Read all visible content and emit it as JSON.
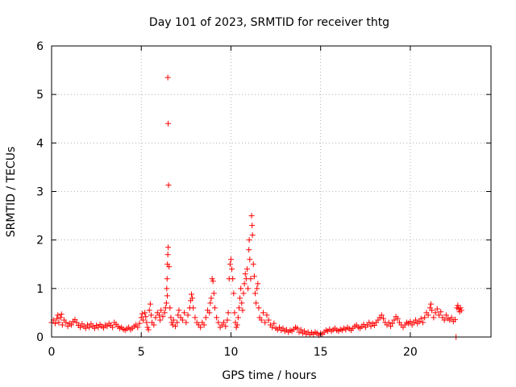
{
  "chart_data": {
    "type": "scatter",
    "title": "Day 101 of 2023, SRMTID for receiver thtg",
    "xlabel": "GPS time / hours",
    "ylabel": "SRMTID / TECUs",
    "xlim": [
      0,
      24.5
    ],
    "ylim": [
      0,
      6
    ],
    "xticks": [
      0,
      5,
      10,
      15,
      20
    ],
    "yticks": [
      0,
      1,
      2,
      3,
      4,
      5,
      6
    ],
    "grid": true,
    "marker": "plus",
    "color": "#ff0000",
    "series": [
      {
        "name": "SRMTID",
        "points": [
          [
            0.0,
            0.3
          ],
          [
            0.1,
            0.35
          ],
          [
            0.2,
            0.28
          ],
          [
            0.3,
            0.38
          ],
          [
            0.35,
            0.45
          ],
          [
            0.4,
            0.3
          ],
          [
            0.5,
            0.4
          ],
          [
            0.55,
            0.47
          ],
          [
            0.6,
            0.25
          ],
          [
            0.7,
            0.35
          ],
          [
            0.8,
            0.3
          ],
          [
            0.9,
            0.22
          ],
          [
            1.0,
            0.28
          ],
          [
            1.1,
            0.25
          ],
          [
            1.2,
            0.32
          ],
          [
            1.3,
            0.36
          ],
          [
            1.4,
            0.3
          ],
          [
            1.5,
            0.24
          ],
          [
            1.6,
            0.2
          ],
          [
            1.7,
            0.27
          ],
          [
            1.8,
            0.22
          ],
          [
            1.9,
            0.18
          ],
          [
            2.0,
            0.25
          ],
          [
            2.1,
            0.2
          ],
          [
            2.2,
            0.27
          ],
          [
            2.3,
            0.22
          ],
          [
            2.4,
            0.18
          ],
          [
            2.5,
            0.24
          ],
          [
            2.6,
            0.2
          ],
          [
            2.7,
            0.26
          ],
          [
            2.8,
            0.22
          ],
          [
            2.9,
            0.19
          ],
          [
            3.0,
            0.25
          ],
          [
            3.1,
            0.22
          ],
          [
            3.2,
            0.28
          ],
          [
            3.3,
            0.24
          ],
          [
            3.4,
            0.2
          ],
          [
            3.5,
            0.3
          ],
          [
            3.6,
            0.26
          ],
          [
            3.7,
            0.22
          ],
          [
            3.8,
            0.18
          ],
          [
            3.9,
            0.2
          ],
          [
            4.0,
            0.16
          ],
          [
            4.1,
            0.14
          ],
          [
            4.2,
            0.17
          ],
          [
            4.3,
            0.2
          ],
          [
            4.4,
            0.15
          ],
          [
            4.5,
            0.18
          ],
          [
            4.6,
            0.22
          ],
          [
            4.7,
            0.25
          ],
          [
            4.8,
            0.2
          ],
          [
            4.9,
            0.28
          ],
          [
            5.0,
            0.4
          ],
          [
            5.05,
            0.48
          ],
          [
            5.1,
            0.35
          ],
          [
            5.2,
            0.5
          ],
          [
            5.25,
            0.42
          ],
          [
            5.3,
            0.3
          ],
          [
            5.35,
            0.2
          ],
          [
            5.4,
            0.15
          ],
          [
            5.45,
            0.55
          ],
          [
            5.5,
            0.68
          ],
          [
            5.55,
            0.45
          ],
          [
            5.6,
            0.3
          ],
          [
            5.7,
            0.25
          ],
          [
            5.8,
            0.4
          ],
          [
            5.9,
            0.5
          ],
          [
            6.0,
            0.45
          ],
          [
            6.05,
            0.35
          ],
          [
            6.1,
            0.55
          ],
          [
            6.2,
            0.42
          ],
          [
            6.3,
            0.5
          ],
          [
            6.35,
            0.6
          ],
          [
            6.4,
            0.7
          ],
          [
            6.45,
            0.85
          ],
          [
            6.42,
            1.0
          ],
          [
            6.44,
            1.2
          ],
          [
            6.46,
            1.5
          ],
          [
            6.48,
            1.7
          ],
          [
            6.5,
            1.85
          ],
          [
            6.52,
            3.13
          ],
          [
            6.5,
            4.4
          ],
          [
            6.48,
            5.35
          ],
          [
            6.55,
            1.45
          ],
          [
            6.6,
            0.6
          ],
          [
            6.65,
            0.4
          ],
          [
            6.7,
            0.3
          ],
          [
            6.75,
            0.25
          ],
          [
            6.8,
            0.35
          ],
          [
            6.9,
            0.22
          ],
          [
            7.0,
            0.3
          ],
          [
            7.05,
            0.45
          ],
          [
            7.1,
            0.55
          ],
          [
            7.2,
            0.4
          ],
          [
            7.3,
            0.35
          ],
          [
            7.4,
            0.5
          ],
          [
            7.5,
            0.3
          ],
          [
            7.6,
            0.45
          ],
          [
            7.7,
            0.6
          ],
          [
            7.75,
            0.75
          ],
          [
            7.8,
            0.88
          ],
          [
            7.85,
            0.8
          ],
          [
            7.9,
            0.6
          ],
          [
            8.0,
            0.4
          ],
          [
            8.1,
            0.3
          ],
          [
            8.2,
            0.25
          ],
          [
            8.3,
            0.2
          ],
          [
            8.4,
            0.3
          ],
          [
            8.5,
            0.25
          ],
          [
            8.6,
            0.4
          ],
          [
            8.7,
            0.55
          ],
          [
            8.8,
            0.5
          ],
          [
            8.85,
            0.7
          ],
          [
            8.9,
            0.8
          ],
          [
            8.95,
            1.2
          ],
          [
            9.0,
            1.15
          ],
          [
            9.05,
            0.9
          ],
          [
            9.1,
            0.6
          ],
          [
            9.2,
            0.4
          ],
          [
            9.3,
            0.3
          ],
          [
            9.4,
            0.2
          ],
          [
            9.5,
            0.25
          ],
          [
            9.6,
            0.3
          ],
          [
            9.7,
            0.22
          ],
          [
            9.8,
            0.35
          ],
          [
            9.85,
            0.5
          ],
          [
            9.9,
            1.2
          ],
          [
            9.95,
            1.5
          ],
          [
            10.0,
            1.6
          ],
          [
            10.05,
            1.4
          ],
          [
            10.1,
            1.2
          ],
          [
            10.15,
            0.9
          ],
          [
            10.2,
            0.5
          ],
          [
            10.25,
            0.3
          ],
          [
            10.3,
            0.2
          ],
          [
            10.35,
            0.25
          ],
          [
            10.4,
            0.4
          ],
          [
            10.45,
            0.6
          ],
          [
            10.5,
            0.8
          ],
          [
            10.55,
            1.0
          ],
          [
            10.6,
            0.7
          ],
          [
            10.65,
            0.55
          ],
          [
            10.7,
            0.9
          ],
          [
            10.75,
            1.1
          ],
          [
            10.8,
            1.3
          ],
          [
            10.85,
            1.2
          ],
          [
            10.9,
            1.4
          ],
          [
            10.95,
            1.0
          ],
          [
            11.0,
            1.8
          ],
          [
            11.02,
            2.0
          ],
          [
            11.05,
            1.6
          ],
          [
            11.1,
            1.2
          ],
          [
            11.15,
            2.5
          ],
          [
            11.18,
            2.3
          ],
          [
            11.2,
            2.1
          ],
          [
            11.25,
            1.5
          ],
          [
            11.3,
            1.25
          ],
          [
            11.35,
            0.9
          ],
          [
            11.4,
            0.7
          ],
          [
            11.45,
            1.0
          ],
          [
            11.5,
            1.1
          ],
          [
            11.55,
            0.6
          ],
          [
            11.6,
            0.4
          ],
          [
            11.7,
            0.35
          ],
          [
            11.8,
            0.5
          ],
          [
            11.9,
            0.3
          ],
          [
            12.0,
            0.45
          ],
          [
            12.1,
            0.35
          ],
          [
            12.2,
            0.25
          ],
          [
            12.3,
            0.2
          ],
          [
            12.4,
            0.28
          ],
          [
            12.5,
            0.18
          ],
          [
            12.6,
            0.15
          ],
          [
            12.7,
            0.2
          ],
          [
            12.8,
            0.14
          ],
          [
            12.9,
            0.18
          ],
          [
            13.0,
            0.12
          ],
          [
            13.1,
            0.15
          ],
          [
            13.2,
            0.1
          ],
          [
            13.3,
            0.14
          ],
          [
            13.4,
            0.12
          ],
          [
            13.5,
            0.16
          ],
          [
            13.6,
            0.2
          ],
          [
            13.7,
            0.18
          ],
          [
            13.8,
            0.1
          ],
          [
            13.9,
            0.15
          ],
          [
            14.0,
            0.08
          ],
          [
            14.1,
            0.12
          ],
          [
            14.2,
            0.06
          ],
          [
            14.3,
            0.1
          ],
          [
            14.4,
            0.05
          ],
          [
            14.5,
            0.09
          ],
          [
            14.6,
            0.06
          ],
          [
            14.7,
            0.1
          ],
          [
            14.8,
            0.08
          ],
          [
            14.9,
            0.04
          ],
          [
            15.0,
            0.07
          ],
          [
            15.1,
            0.06
          ],
          [
            15.2,
            0.1
          ],
          [
            15.3,
            0.14
          ],
          [
            15.4,
            0.12
          ],
          [
            15.5,
            0.16
          ],
          [
            15.6,
            0.12
          ],
          [
            15.7,
            0.15
          ],
          [
            15.8,
            0.18
          ],
          [
            15.9,
            0.14
          ],
          [
            16.0,
            0.12
          ],
          [
            16.1,
            0.16
          ],
          [
            16.2,
            0.14
          ],
          [
            16.3,
            0.18
          ],
          [
            16.4,
            0.15
          ],
          [
            16.5,
            0.2
          ],
          [
            16.6,
            0.17
          ],
          [
            16.7,
            0.14
          ],
          [
            16.8,
            0.18
          ],
          [
            16.9,
            0.22
          ],
          [
            17.0,
            0.25
          ],
          [
            17.1,
            0.2
          ],
          [
            17.2,
            0.18
          ],
          [
            17.3,
            0.22
          ],
          [
            17.4,
            0.26
          ],
          [
            17.5,
            0.2
          ],
          [
            17.6,
            0.25
          ],
          [
            17.7,
            0.3
          ],
          [
            17.8,
            0.22
          ],
          [
            17.9,
            0.28
          ],
          [
            18.0,
            0.24
          ],
          [
            18.1,
            0.3
          ],
          [
            18.2,
            0.35
          ],
          [
            18.3,
            0.4
          ],
          [
            18.4,
            0.45
          ],
          [
            18.5,
            0.38
          ],
          [
            18.6,
            0.3
          ],
          [
            18.7,
            0.25
          ],
          [
            18.8,
            0.3
          ],
          [
            18.9,
            0.22
          ],
          [
            19.0,
            0.28
          ],
          [
            19.1,
            0.35
          ],
          [
            19.2,
            0.42
          ],
          [
            19.3,
            0.38
          ],
          [
            19.4,
            0.3
          ],
          [
            19.5,
            0.25
          ],
          [
            19.6,
            0.2
          ],
          [
            19.7,
            0.25
          ],
          [
            19.8,
            0.3
          ],
          [
            19.9,
            0.28
          ],
          [
            20.0,
            0.32
          ],
          [
            20.1,
            0.25
          ],
          [
            20.2,
            0.3
          ],
          [
            20.3,
            0.35
          ],
          [
            20.4,
            0.28
          ],
          [
            20.5,
            0.32
          ],
          [
            20.6,
            0.38
          ],
          [
            20.7,
            0.3
          ],
          [
            20.8,
            0.4
          ],
          [
            20.9,
            0.5
          ],
          [
            21.0,
            0.45
          ],
          [
            21.1,
            0.6
          ],
          [
            21.15,
            0.68
          ],
          [
            21.2,
            0.55
          ],
          [
            21.3,
            0.4
          ],
          [
            21.4,
            0.5
          ],
          [
            21.5,
            0.58
          ],
          [
            21.6,
            0.45
          ],
          [
            21.7,
            0.52
          ],
          [
            21.8,
            0.4
          ],
          [
            21.9,
            0.35
          ],
          [
            22.0,
            0.45
          ],
          [
            22.1,
            0.38
          ],
          [
            22.2,
            0.35
          ],
          [
            22.3,
            0.4
          ],
          [
            22.4,
            0.32
          ],
          [
            22.5,
            0.36
          ],
          [
            22.55,
            0.0
          ],
          [
            22.6,
            0.6
          ],
          [
            22.65,
            0.65
          ],
          [
            22.7,
            0.58
          ],
          [
            22.75,
            0.52
          ],
          [
            22.8,
            0.6
          ],
          [
            22.85,
            0.55
          ]
        ]
      }
    ]
  }
}
